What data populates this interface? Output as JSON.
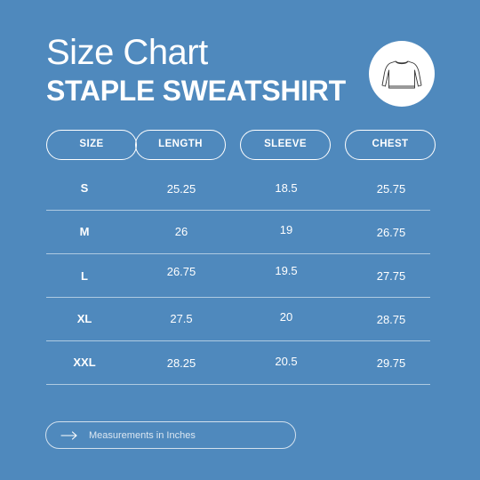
{
  "header": {
    "title": "Size Chart",
    "subtitle": "STAPLE SWEATSHIRT"
  },
  "product_icon": "sweatshirt-icon",
  "table": {
    "columns": [
      "SIZE",
      "LENGTH",
      "SLEEVE",
      "CHEST"
    ],
    "rows": [
      {
        "size": "S",
        "length": "25.25",
        "sleeve": "18.5",
        "chest": "25.75"
      },
      {
        "size": "M",
        "length": "26",
        "sleeve": "19",
        "chest": "26.75"
      },
      {
        "size": "L",
        "length": "26.75",
        "sleeve": "19.5",
        "chest": "27.75"
      },
      {
        "size": "XL",
        "length": "27.5",
        "sleeve": "20",
        "chest": "28.75"
      },
      {
        "size": "XXL",
        "length": "28.25",
        "sleeve": "20.5",
        "chest": "29.75"
      }
    ]
  },
  "footer": {
    "note": "Measurements in Inches",
    "icon": "arrow-right-icon"
  },
  "colors": {
    "background": "#4f89bd",
    "text": "#ffffff"
  }
}
